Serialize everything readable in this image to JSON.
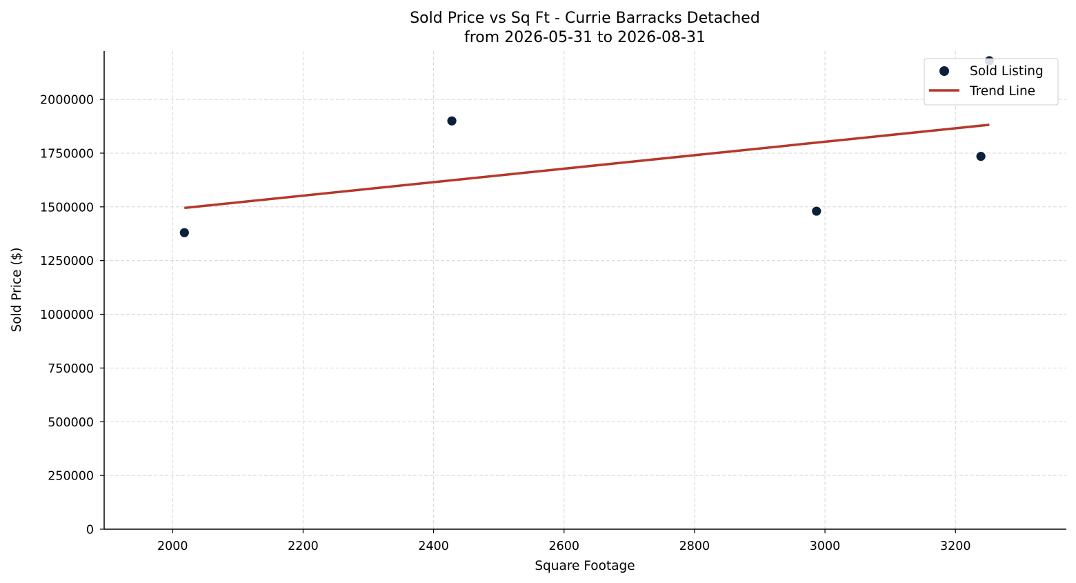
{
  "chart_data": {
    "type": "scatter",
    "title_line1": "Sold Price vs Sq Ft - Currie Barracks Detached",
    "title_line2": "from 2026-05-31 to 2026-08-31",
    "xlabel": "Square Footage",
    "ylabel": "Sold Price ($)",
    "xlim": [
      1895,
      3370
    ],
    "ylim": [
      0,
      2225000
    ],
    "x_ticks": [
      2000,
      2200,
      2400,
      2600,
      2800,
      3000,
      3200
    ],
    "x_tick_labels": [
      "2000",
      "2200",
      "2400",
      "2600",
      "2800",
      "3000",
      "3200"
    ],
    "y_ticks": [
      0,
      250000,
      500000,
      750000,
      1000000,
      1250000,
      1500000,
      1750000,
      2000000
    ],
    "y_tick_labels": [
      "0",
      "250000",
      "500000",
      "750000",
      "1000000",
      "1250000",
      "1500000",
      "1750000",
      "2000000"
    ],
    "grid": true,
    "legend_position": "top-right",
    "series": [
      {
        "name": "Sold Listing",
        "kind": "scatter",
        "color": "#0b1f3a",
        "x": [
          2018,
          2428,
          2987,
          3239,
          3252
        ],
        "y": [
          1380000,
          1900000,
          1480000,
          1735000,
          2180000
        ]
      },
      {
        "name": "Trend Line",
        "kind": "line",
        "color": "#b5382b",
        "x": [
          2018,
          3252
        ],
        "y": [
          1495000,
          1882000
        ]
      }
    ]
  }
}
